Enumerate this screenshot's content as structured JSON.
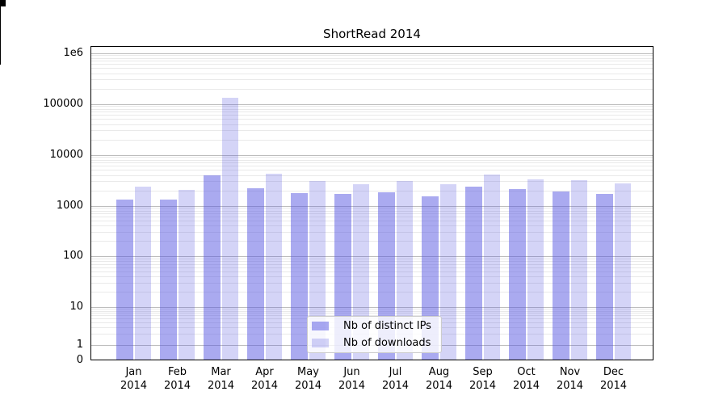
{
  "figure": {
    "title": "ShortRead 2014"
  },
  "chart_data": {
    "type": "bar",
    "title": "ShortRead 2014",
    "yscale": "symlog",
    "xlabel": "",
    "ylabel": "",
    "categories": [
      "Jan 2014",
      "Feb 2014",
      "Mar 2014",
      "Apr 2014",
      "May 2014",
      "Jun 2014",
      "Jul 2014",
      "Aug 2014",
      "Sep 2014",
      "Oct 2014",
      "Nov 2014",
      "Dec 2014"
    ],
    "series": [
      {
        "name": "Nb of distinct IPs",
        "color": "rgba(85,85,225,0.5)",
        "values": [
          1330,
          1330,
          3870,
          2230,
          1790,
          1730,
          1850,
          1550,
          2400,
          2080,
          1930,
          1670
        ]
      },
      {
        "name": "Nb of downloads",
        "color": "rgba(85,85,225,0.25)",
        "values": [
          2320,
          2060,
          130000,
          4160,
          3100,
          2680,
          3000,
          2680,
          4050,
          3340,
          3220,
          2780
        ]
      }
    ],
    "ylim": [
      0,
      1260000
    ],
    "ytick_values": [
      0,
      1,
      10,
      100,
      1000,
      10000,
      100000,
      1000000
    ],
    "ytick_labels": [
      "0",
      "1",
      "10",
      "100",
      "1000",
      "10000",
      "100000",
      "1e6"
    ],
    "grid": {
      "horizontal_major": true,
      "horizontal_minor": true,
      "vertical": false
    },
    "legend_position": "lower center"
  },
  "colors": {
    "bar_base": "#5555e1",
    "major_grid": "#bdbdbd",
    "minor_grid": "#e9e9e9",
    "axis": "#000000",
    "legend_border": "#cccccc",
    "legend_bg": "rgba(255,255,255,0.8)"
  }
}
